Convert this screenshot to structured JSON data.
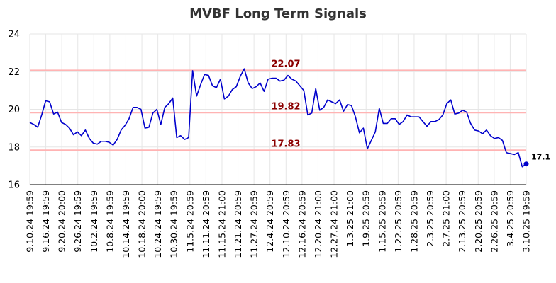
{
  "chart_data": {
    "type": "line",
    "title": "MVBF Long Term Signals",
    "xlabel": "",
    "ylabel": "",
    "ylim": [
      16,
      24
    ],
    "yticks": [
      16,
      18,
      20,
      22,
      24
    ],
    "grid": true,
    "legend": "none",
    "colors": {
      "line": "#0000cc",
      "level_line": "#ffb3b3",
      "level_label": "#8b0000",
      "grid": "#e6e6e6"
    },
    "x_tick_labels": [
      "9.10.24 19:59",
      "9.16.24 19:59",
      "9.20.24 20:00",
      "9.26.24 19:59",
      "10.2.24 19:59",
      "10.8.24 19:59",
      "10.14.24 19:59",
      "10.18.24 20:00",
      "10.24.24 19:59",
      "10.30.24 19:59",
      "11.5.24 20:59",
      "11.11.24 20:59",
      "11.15.24 21:00",
      "11.21.24 20:59",
      "11.27.24 20:59",
      "12.4.24 20:59",
      "12.10.24 20:59",
      "12.16.24 20:59",
      "12.20.24 21:00",
      "12.27.24 21:00",
      "1.3.25 21:00",
      "1.9.25 20:59",
      "1.15.25 20:59",
      "1.22.25 20:59",
      "1.28.25 20:59",
      "2.3.25 20:59",
      "2.7.25 21:00",
      "2.13.25 20:59",
      "2.20.25 20:59",
      "2.26.25 20:59",
      "3.4.25 20:59",
      "3.10.25 19:59"
    ],
    "levels": [
      {
        "value": 22.07,
        "label": "22.07"
      },
      {
        "value": 19.82,
        "label": "19.82"
      },
      {
        "value": 17.83,
        "label": "17.83"
      }
    ],
    "last_value_label": "17.1",
    "series": [
      {
        "values": [
          19.3,
          19.2,
          19.05,
          19.7,
          20.45,
          20.4,
          19.75,
          19.85,
          19.3,
          19.2,
          19.0,
          18.65,
          18.8,
          18.6,
          18.9,
          18.45,
          18.2,
          18.15,
          18.3,
          18.3,
          18.25,
          18.1,
          18.4,
          18.9,
          19.15,
          19.5,
          20.1,
          20.1,
          20.0,
          19.0,
          19.05,
          19.8,
          20.0,
          19.2,
          20.1,
          20.3,
          20.6,
          18.5,
          18.6,
          18.4,
          18.5,
          22.05,
          20.7,
          21.3,
          21.85,
          21.8,
          21.25,
          21.15,
          21.6,
          20.55,
          20.7,
          21.05,
          21.2,
          21.75,
          22.15,
          21.4,
          21.1,
          21.2,
          21.4,
          20.95,
          21.6,
          21.65,
          21.65,
          21.5,
          21.55,
          21.8,
          21.6,
          21.5,
          21.25,
          21.0,
          19.7,
          19.8,
          21.1,
          19.95,
          20.1,
          20.5,
          20.4,
          20.3,
          20.5,
          19.9,
          20.25,
          20.2,
          19.6,
          18.75,
          19.0,
          17.9,
          18.35,
          18.8,
          20.05,
          19.25,
          19.25,
          19.5,
          19.5,
          19.2,
          19.35,
          19.7,
          19.6,
          19.6,
          19.6,
          19.35,
          19.1,
          19.35,
          19.35,
          19.45,
          19.7,
          20.3,
          20.5,
          19.75,
          19.8,
          19.95,
          19.85,
          19.25,
          18.9,
          18.85,
          18.7,
          18.9,
          18.6,
          18.45,
          18.5,
          18.35,
          17.7,
          17.65,
          17.6,
          17.7,
          16.95,
          17.1
        ]
      }
    ]
  }
}
